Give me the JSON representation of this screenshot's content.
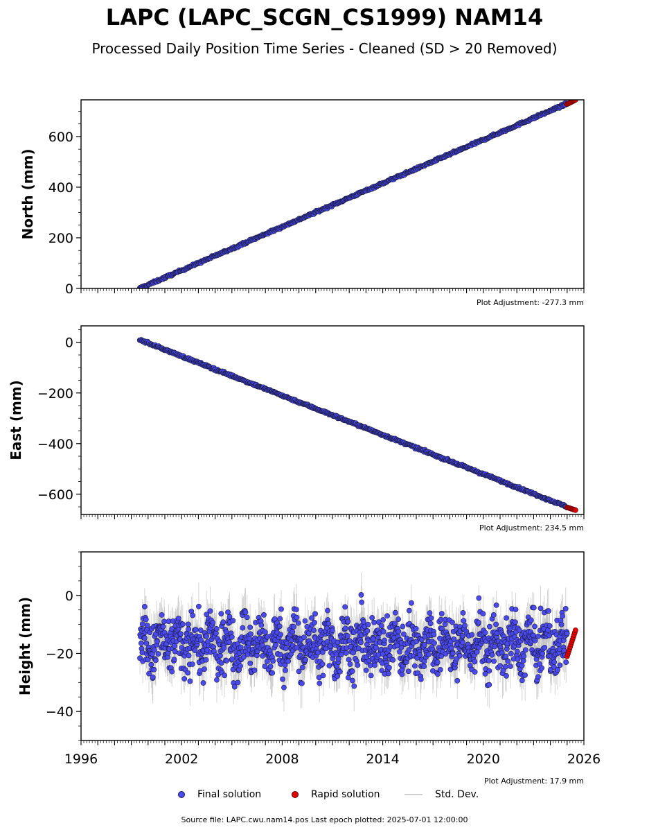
{
  "header": {
    "title": "LAPC (LAPC_SCGN_CS1999) NAM14",
    "subtitle": "Processed Daily Position Time Series - Cleaned (SD > 20 Removed)"
  },
  "legend": {
    "final": "Final solution",
    "rapid": "Rapid solution",
    "std": "Std. Dev."
  },
  "footer": {
    "source": "Source file: LAPC.cwu.nam14.pos  Last epoch plotted: 2025-07-01 12:00:00"
  },
  "colors": {
    "final": "#4a4af0",
    "final_edge": "#1a1a40",
    "rapid": "#e00000",
    "std": "#b8b8b8"
  },
  "chart_data": [
    {
      "type": "scatter",
      "ylabel": "North (mm)",
      "adjustment": "Plot Adjustment: -277.3 mm",
      "xlim": [
        1996,
        2026
      ],
      "ylim": [
        0,
        745
      ],
      "yticks": [
        0,
        200,
        400,
        600
      ],
      "ytick_labels": [
        "0",
        "200",
        "400",
        "600"
      ],
      "show_xtick_labels": false,
      "trend": {
        "x": [
          1999.5,
          2025.5
        ],
        "y": [
          0,
          745
        ]
      },
      "noise": 3,
      "rapid": {
        "x_start": 2025.0,
        "x_end": 2025.5,
        "y": [
          728,
          745
        ]
      }
    },
    {
      "type": "scatter",
      "ylabel": "East (mm)",
      "adjustment": "Plot Adjustment: 234.5 mm",
      "xlim": [
        1996,
        2026
      ],
      "ylim": [
        -680,
        65
      ],
      "yticks": [
        -600,
        -400,
        -200,
        0
      ],
      "ytick_labels": [
        "−600",
        "−400",
        "−200",
        "0"
      ],
      "show_xtick_labels": false,
      "trend": {
        "x": [
          1999.5,
          2025.5
        ],
        "y": [
          10,
          -663
        ]
      },
      "noise": 3,
      "rapid": {
        "x_start": 2025.0,
        "x_end": 2025.5,
        "y": [
          -652,
          -663
        ]
      }
    },
    {
      "type": "scatter",
      "ylabel": "Height (mm)",
      "adjustment": "Plot Adjustment: 17.9 mm",
      "xlim": [
        1996,
        2026
      ],
      "ylim": [
        -50,
        15
      ],
      "yticks": [
        -40,
        -20,
        0
      ],
      "ytick_labels": [
        "−40",
        "−20",
        "0"
      ],
      "show_xtick_labels": true,
      "xticks": [
        1996,
        2002,
        2008,
        2014,
        2020,
        2026
      ],
      "xtick_labels": [
        "1996",
        "2002",
        "2008",
        "2014",
        "2020",
        "2026"
      ],
      "trend": {
        "x": [
          1999.5,
          2025.5
        ],
        "y": [
          -17,
          -17
        ]
      },
      "noise": 7,
      "rapid": {
        "x_start": 2025.0,
        "x_end": 2025.5,
        "y": [
          -21,
          -12
        ]
      }
    }
  ]
}
